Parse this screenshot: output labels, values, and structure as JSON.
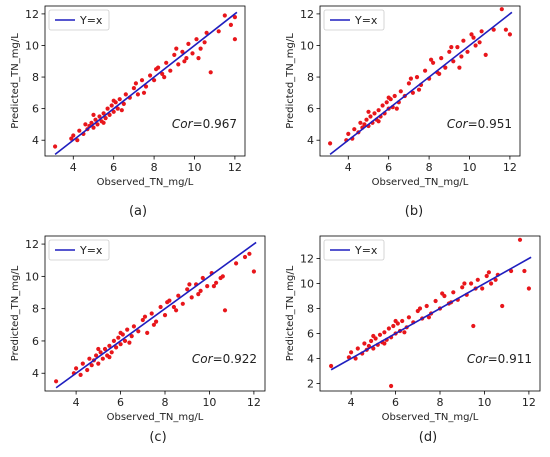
{
  "chart_data": [
    {
      "type": "scatter",
      "panel_label": "(a)",
      "xlabel": "Observed_TN_mg/L",
      "ylabel": "Predicted_TN_mg/L",
      "xlim": [
        2.6,
        12.5
      ],
      "ylim": [
        3.0,
        12.5
      ],
      "xticks": [
        4,
        6,
        8,
        10,
        12
      ],
      "yticks": [
        4,
        6,
        8,
        10,
        12
      ],
      "legend": {
        "label": "Y=x",
        "placement": "top-left"
      },
      "reference_line": {
        "label": "Y=x",
        "x": [
          3.1,
          12.1
        ],
        "y": [
          3.1,
          12.1
        ],
        "color": "#1f1fbf"
      },
      "annotation": {
        "prefix": "Cor",
        "value": "=0.967"
      },
      "point_color": "#e8161b",
      "points": [
        [
          3.1,
          3.6
        ],
        [
          3.9,
          4.1
        ],
        [
          4.0,
          4.3
        ],
        [
          4.2,
          4.0
        ],
        [
          4.3,
          4.6
        ],
        [
          4.5,
          4.4
        ],
        [
          4.6,
          5.0
        ],
        [
          4.7,
          4.7
        ],
        [
          4.8,
          4.9
        ],
        [
          4.9,
          5.1
        ],
        [
          5.0,
          4.8
        ],
        [
          5.1,
          5.3
        ],
        [
          5.2,
          5.0
        ],
        [
          5.3,
          5.5
        ],
        [
          5.4,
          5.2
        ],
        [
          5.5,
          5.7
        ],
        [
          5.6,
          5.4
        ],
        [
          5.7,
          6.0
        ],
        [
          5.8,
          5.6
        ],
        [
          5.9,
          6.2
        ],
        [
          6.0,
          5.8
        ],
        [
          6.1,
          6.4
        ],
        [
          6.2,
          6.0
        ],
        [
          6.3,
          6.6
        ],
        [
          6.5,
          6.3
        ],
        [
          6.6,
          6.9
        ],
        [
          6.8,
          6.7
        ],
        [
          7.0,
          7.3
        ],
        [
          7.2,
          6.9
        ],
        [
          7.4,
          7.8
        ],
        [
          7.6,
          7.4
        ],
        [
          7.8,
          8.1
        ],
        [
          8.0,
          7.8
        ],
        [
          8.2,
          8.6
        ],
        [
          8.4,
          8.2
        ],
        [
          8.6,
          8.9
        ],
        [
          8.8,
          8.4
        ],
        [
          9.0,
          9.4
        ],
        [
          9.2,
          8.8
        ],
        [
          9.4,
          9.6
        ],
        [
          9.5,
          9.0
        ],
        [
          9.7,
          10.1
        ],
        [
          9.9,
          9.5
        ],
        [
          10.1,
          10.4
        ],
        [
          10.3,
          9.8
        ],
        [
          10.6,
          10.8
        ],
        [
          10.8,
          8.3
        ],
        [
          11.2,
          10.9
        ],
        [
          11.5,
          11.9
        ],
        [
          11.8,
          11.3
        ],
        [
          12.0,
          10.4
        ],
        [
          12.0,
          11.8
        ],
        [
          5.0,
          5.6
        ],
        [
          5.5,
          5.1
        ],
        [
          6.0,
          6.5
        ],
        [
          6.4,
          5.9
        ],
        [
          7.1,
          7.6
        ],
        [
          7.5,
          7.0
        ],
        [
          8.1,
          8.5
        ],
        [
          8.5,
          8.0
        ],
        [
          9.1,
          9.8
        ],
        [
          9.6,
          9.2
        ],
        [
          10.2,
          9.2
        ],
        [
          10.5,
          10.2
        ]
      ]
    },
    {
      "type": "scatter",
      "panel_label": "(b)",
      "xlabel": "Observed_TN_mg/L",
      "ylabel": "Predicted_TN_mg/L",
      "xlim": [
        2.6,
        12.5
      ],
      "ylim": [
        3.0,
        12.5
      ],
      "xticks": [
        4,
        6,
        8,
        10,
        12
      ],
      "yticks": [
        4,
        6,
        8,
        10,
        12
      ],
      "legend": {
        "label": "Y=x",
        "placement": "top-left"
      },
      "reference_line": {
        "label": "Y=x",
        "x": [
          3.1,
          12.1
        ],
        "y": [
          3.1,
          12.1
        ],
        "color": "#1f1fbf"
      },
      "annotation": {
        "prefix": "Cor",
        "value": "=0.951"
      },
      "point_color": "#e8161b",
      "points": [
        [
          3.1,
          3.8
        ],
        [
          3.9,
          4.0
        ],
        [
          4.0,
          4.4
        ],
        [
          4.2,
          4.1
        ],
        [
          4.3,
          4.7
        ],
        [
          4.5,
          4.5
        ],
        [
          4.6,
          5.1
        ],
        [
          4.7,
          4.8
        ],
        [
          4.8,
          5.0
        ],
        [
          4.9,
          5.3
        ],
        [
          5.0,
          4.9
        ],
        [
          5.1,
          5.5
        ],
        [
          5.2,
          5.1
        ],
        [
          5.3,
          5.7
        ],
        [
          5.4,
          5.3
        ],
        [
          5.5,
          5.9
        ],
        [
          5.6,
          5.5
        ],
        [
          5.7,
          6.2
        ],
        [
          5.8,
          5.7
        ],
        [
          5.9,
          6.4
        ],
        [
          6.0,
          6.0
        ],
        [
          6.1,
          6.6
        ],
        [
          6.2,
          6.1
        ],
        [
          6.3,
          6.8
        ],
        [
          6.5,
          6.4
        ],
        [
          6.6,
          7.1
        ],
        [
          6.8,
          6.8
        ],
        [
          7.0,
          7.6
        ],
        [
          7.2,
          7.0
        ],
        [
          7.4,
          8.0
        ],
        [
          7.6,
          7.5
        ],
        [
          7.8,
          8.4
        ],
        [
          8.0,
          7.9
        ],
        [
          8.2,
          8.9
        ],
        [
          8.4,
          8.3
        ],
        [
          8.6,
          9.2
        ],
        [
          8.8,
          8.6
        ],
        [
          9.0,
          9.6
        ],
        [
          9.2,
          9.0
        ],
        [
          9.4,
          9.9
        ],
        [
          9.5,
          8.6
        ],
        [
          9.7,
          10.3
        ],
        [
          9.9,
          9.6
        ],
        [
          10.1,
          10.7
        ],
        [
          10.3,
          10.0
        ],
        [
          10.6,
          10.9
        ],
        [
          10.8,
          9.4
        ],
        [
          11.2,
          11.0
        ],
        [
          11.6,
          12.3
        ],
        [
          11.8,
          11.0
        ],
        [
          12.0,
          10.7
        ],
        [
          5.0,
          5.8
        ],
        [
          5.5,
          5.2
        ],
        [
          6.0,
          6.7
        ],
        [
          6.4,
          6.0
        ],
        [
          7.1,
          7.9
        ],
        [
          7.5,
          7.2
        ],
        [
          8.1,
          9.1
        ],
        [
          8.5,
          8.2
        ],
        [
          9.1,
          9.9
        ],
        [
          9.6,
          9.3
        ],
        [
          10.2,
          10.5
        ],
        [
          10.5,
          10.2
        ]
      ]
    },
    {
      "type": "scatter",
      "panel_label": "(c)",
      "xlabel": "Observed_TN_mg/L",
      "ylabel": "Predicted_TN_mg/L",
      "xlim": [
        2.6,
        12.5
      ],
      "ylim": [
        2.9,
        12.5
      ],
      "xticks": [
        4,
        6,
        8,
        10,
        12
      ],
      "yticks": [
        4,
        6,
        8,
        10,
        12
      ],
      "legend": {
        "label": "Y=x",
        "placement": "top-left"
      },
      "reference_line": {
        "label": "Y=x",
        "x": [
          3.1,
          12.1
        ],
        "y": [
          3.1,
          12.1
        ],
        "color": "#1f1fbf"
      },
      "annotation": {
        "prefix": "Cor",
        "value": "=0.922"
      },
      "point_color": "#e8161b",
      "points": [
        [
          3.1,
          3.5
        ],
        [
          3.9,
          4.0
        ],
        [
          4.0,
          4.3
        ],
        [
          4.2,
          3.9
        ],
        [
          4.3,
          4.6
        ],
        [
          4.5,
          4.2
        ],
        [
          4.6,
          4.9
        ],
        [
          4.7,
          4.5
        ],
        [
          4.8,
          4.8
        ],
        [
          4.9,
          5.1
        ],
        [
          5.0,
          4.6
        ],
        [
          5.1,
          5.3
        ],
        [
          5.2,
          4.9
        ],
        [
          5.3,
          5.5
        ],
        [
          5.4,
          5.1
        ],
        [
          5.5,
          5.7
        ],
        [
          5.6,
          5.3
        ],
        [
          5.7,
          6.0
        ],
        [
          5.8,
          5.6
        ],
        [
          5.9,
          6.2
        ],
        [
          6.0,
          5.8
        ],
        [
          6.1,
          6.4
        ],
        [
          6.2,
          6.0
        ],
        [
          6.3,
          6.7
        ],
        [
          6.5,
          6.3
        ],
        [
          6.6,
          6.9
        ],
        [
          6.8,
          6.6
        ],
        [
          7.0,
          7.3
        ],
        [
          7.2,
          6.5
        ],
        [
          7.4,
          7.7
        ],
        [
          7.6,
          7.2
        ],
        [
          7.8,
          8.1
        ],
        [
          8.0,
          7.6
        ],
        [
          8.2,
          8.5
        ],
        [
          8.4,
          8.1
        ],
        [
          8.6,
          8.8
        ],
        [
          8.8,
          8.3
        ],
        [
          9.0,
          9.2
        ],
        [
          9.2,
          8.7
        ],
        [
          9.4,
          9.5
        ],
        [
          9.5,
          8.9
        ],
        [
          9.7,
          9.9
        ],
        [
          9.9,
          9.4
        ],
        [
          10.1,
          10.2
        ],
        [
          10.3,
          9.6
        ],
        [
          10.6,
          10.0
        ],
        [
          10.7,
          7.9
        ],
        [
          11.2,
          10.8
        ],
        [
          11.6,
          11.2
        ],
        [
          11.8,
          11.4
        ],
        [
          12.0,
          10.3
        ],
        [
          5.0,
          5.5
        ],
        [
          5.5,
          5.0
        ],
        [
          6.0,
          6.5
        ],
        [
          6.4,
          5.9
        ],
        [
          7.1,
          7.5
        ],
        [
          7.5,
          7.0
        ],
        [
          8.1,
          8.4
        ],
        [
          8.5,
          7.9
        ],
        [
          9.1,
          9.5
        ],
        [
          9.6,
          9.1
        ],
        [
          10.2,
          9.4
        ],
        [
          10.5,
          9.9
        ]
      ]
    },
    {
      "type": "scatter",
      "panel_label": "(d)",
      "xlabel": "Observed_TN_mg/L",
      "ylabel": "Predicted_TN_mg/L",
      "xlim": [
        2.6,
        12.5
      ],
      "ylim": [
        1.4,
        13.8
      ],
      "xticks": [
        4,
        6,
        8,
        10,
        12
      ],
      "yticks": [
        2,
        4,
        6,
        8,
        10,
        12
      ],
      "legend": {
        "label": "Y=x",
        "placement": "top-left"
      },
      "reference_line": {
        "label": "Y=x",
        "x": [
          3.1,
          12.1
        ],
        "y": [
          3.1,
          12.1
        ],
        "color": "#1f1fbf"
      },
      "annotation": {
        "prefix": "Cor",
        "value": "=0.911"
      },
      "point_color": "#e8161b",
      "points": [
        [
          3.1,
          3.4
        ],
        [
          3.9,
          4.1
        ],
        [
          4.0,
          4.5
        ],
        [
          4.2,
          4.0
        ],
        [
          4.3,
          4.8
        ],
        [
          4.5,
          4.4
        ],
        [
          4.6,
          5.2
        ],
        [
          4.7,
          4.7
        ],
        [
          4.8,
          5.0
        ],
        [
          4.9,
          5.4
        ],
        [
          5.0,
          4.8
        ],
        [
          5.1,
          5.6
        ],
        [
          5.2,
          5.1
        ],
        [
          5.3,
          5.9
        ],
        [
          5.4,
          5.3
        ],
        [
          5.5,
          6.1
        ],
        [
          5.6,
          5.5
        ],
        [
          5.7,
          6.4
        ],
        [
          5.8,
          5.7
        ],
        [
          5.9,
          6.6
        ],
        [
          6.0,
          6.0
        ],
        [
          6.1,
          6.8
        ],
        [
          6.2,
          6.2
        ],
        [
          6.3,
          7.0
        ],
        [
          6.5,
          6.5
        ],
        [
          6.6,
          7.3
        ],
        [
          6.8,
          6.9
        ],
        [
          7.0,
          7.8
        ],
        [
          7.2,
          7.2
        ],
        [
          7.4,
          8.2
        ],
        [
          7.6,
          7.6
        ],
        [
          7.8,
          8.6
        ],
        [
          8.0,
          8.0
        ],
        [
          8.2,
          9.0
        ],
        [
          8.4,
          8.4
        ],
        [
          8.6,
          9.3
        ],
        [
          8.8,
          8.7
        ],
        [
          9.0,
          9.7
        ],
        [
          9.2,
          9.1
        ],
        [
          9.4,
          10.0
        ],
        [
          9.5,
          6.6
        ],
        [
          9.7,
          10.3
        ],
        [
          9.9,
          9.6
        ],
        [
          10.1,
          10.6
        ],
        [
          10.3,
          10.0
        ],
        [
          10.6,
          10.7
        ],
        [
          10.8,
          8.2
        ],
        [
          11.2,
          11.0
        ],
        [
          11.6,
          13.5
        ],
        [
          11.8,
          11.0
        ],
        [
          12.0,
          9.6
        ],
        [
          5.8,
          1.8
        ],
        [
          5.0,
          5.8
        ],
        [
          5.5,
          5.2
        ],
        [
          6.0,
          7.0
        ],
        [
          6.4,
          6.1
        ],
        [
          7.1,
          8.0
        ],
        [
          7.5,
          7.3
        ],
        [
          8.1,
          9.2
        ],
        [
          8.5,
          8.5
        ],
        [
          9.1,
          10.0
        ],
        [
          9.6,
          9.6
        ],
        [
          10.2,
          10.9
        ],
        [
          10.5,
          10.3
        ]
      ]
    }
  ]
}
